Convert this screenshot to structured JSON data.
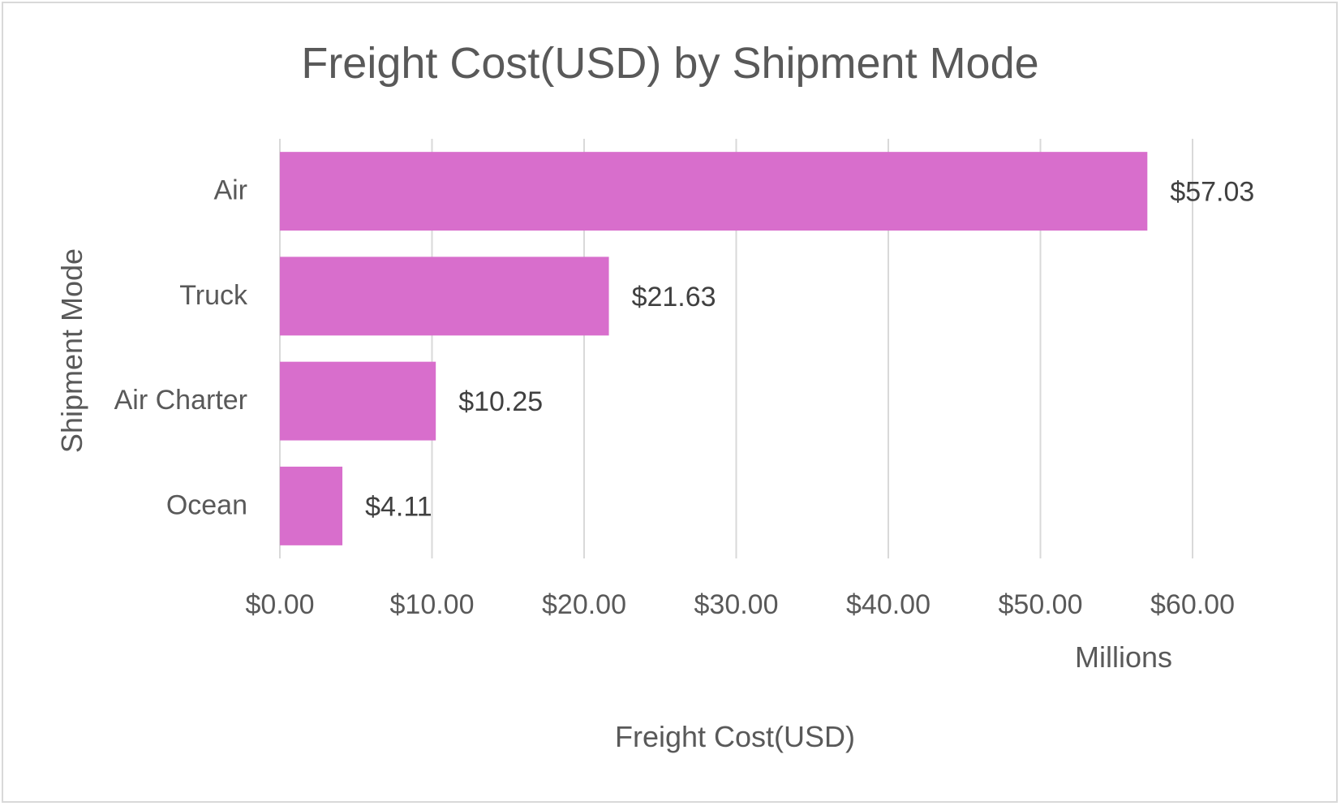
{
  "chart_data": {
    "type": "bar",
    "orientation": "horizontal",
    "title": "Freight Cost(USD) by Shipment Mode",
    "categories": [
      "Air",
      "Truck",
      "Air Charter",
      "Ocean"
    ],
    "values": [
      57.03,
      21.63,
      10.25,
      4.11
    ],
    "data_labels": [
      "$57.03",
      "$21.63",
      "$10.25",
      "$4.11"
    ],
    "xlabel": "Freight Cost(USD)",
    "ylabel": "Shipment Mode",
    "x_unit_label": "Millions",
    "xlim": [
      0,
      60
    ],
    "x_ticks": [
      0,
      10,
      20,
      30,
      40,
      50,
      60
    ],
    "x_tick_labels": [
      "$0.00",
      "$10.00",
      "$20.00",
      "$30.00",
      "$40.00",
      "$50.00",
      "$60.00"
    ],
    "grid": true,
    "legend": "none",
    "bar_color": "#d86ecc",
    "grid_color": "#d9d9d9",
    "text_color": "#595959"
  }
}
